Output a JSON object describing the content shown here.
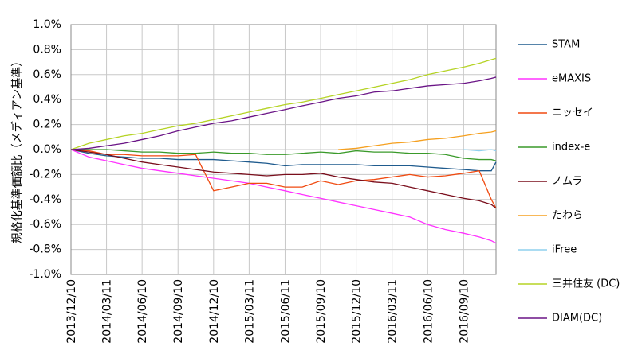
{
  "chart_data": {
    "type": "line",
    "y_label": "規格化基準価額比（メディアン基準）",
    "x": [
      "2013/12/10",
      "2014/01/25",
      "2014/03/11",
      "2014/04/25",
      "2014/06/10",
      "2014/07/25",
      "2014/09/10",
      "2014/10/25",
      "2014/12/10",
      "2015/01/25",
      "2015/03/11",
      "2015/04/25",
      "2015/06/11",
      "2015/07/25",
      "2015/09/10",
      "2015/10/25",
      "2015/12/10",
      "2016/01/25",
      "2016/03/11",
      "2016/04/25",
      "2016/06/10",
      "2016/07/25",
      "2016/09/10",
      "2016/10/20",
      "2016/11/20",
      "2016/12/02"
    ],
    "xlim": [
      "2013/12/10",
      "2016/12/02"
    ],
    "xticks": [
      "2013/12/10",
      "2014/03/11",
      "2014/06/10",
      "2014/09/10",
      "2014/12/10",
      "2015/03/11",
      "2015/06/11",
      "2015/09/10",
      "2015/12/10",
      "2016/03/11",
      "2016/06/10",
      "2016/09/10"
    ],
    "ylim": [
      -1.0,
      1.0
    ],
    "yticks": [
      {
        "value": -1.0,
        "label": "-1.0%"
      },
      {
        "value": -0.8,
        "label": "-0.8%"
      },
      {
        "value": -0.6,
        "label": "-0.6%"
      },
      {
        "value": -0.4,
        "label": "-0.4%"
      },
      {
        "value": -0.2,
        "label": "-0.2%"
      },
      {
        "value": 0.0,
        "label": "0.0%"
      },
      {
        "value": 0.2,
        "label": "0.2%"
      },
      {
        "value": 0.4,
        "label": "0.4%"
      },
      {
        "value": 0.6,
        "label": "0.6%"
      },
      {
        "value": 0.8,
        "label": "0.8%"
      },
      {
        "value": 1.0,
        "label": "1.0%"
      }
    ],
    "grid": true,
    "legend": "right",
    "series": [
      {
        "name": "STAM",
        "color": "#1f5b8e",
        "values": [
          0,
          -0.03,
          -0.05,
          -0.06,
          -0.07,
          -0.07,
          -0.08,
          -0.08,
          -0.08,
          -0.09,
          -0.1,
          -0.11,
          -0.13,
          -0.12,
          -0.12,
          -0.12,
          -0.12,
          -0.13,
          -0.13,
          -0.13,
          -0.14,
          -0.15,
          -0.16,
          -0.17,
          -0.17,
          -0.1
        ]
      },
      {
        "name": "eMAXIS",
        "color": "#ff33ff",
        "values": [
          0,
          -0.06,
          -0.09,
          -0.12,
          -0.15,
          -0.17,
          -0.19,
          -0.21,
          -0.23,
          -0.25,
          -0.27,
          -0.3,
          -0.33,
          -0.36,
          -0.39,
          -0.42,
          -0.45,
          -0.48,
          -0.51,
          -0.54,
          -0.6,
          -0.64,
          -0.67,
          -0.7,
          -0.73,
          -0.75
        ]
      },
      {
        "name": "ニッセイ",
        "color": "#f04a10",
        "values": [
          0,
          -0.01,
          -0.04,
          -0.04,
          -0.05,
          -0.05,
          -0.05,
          -0.04,
          -0.33,
          -0.3,
          -0.27,
          -0.27,
          -0.3,
          -0.3,
          -0.25,
          -0.28,
          -0.25,
          -0.24,
          -0.22,
          -0.2,
          -0.22,
          -0.21,
          -0.19,
          -0.17,
          -0.4,
          -0.47
        ]
      },
      {
        "name": "index-e",
        "color": "#3a9a2a",
        "values": [
          0,
          0,
          0,
          -0.01,
          -0.02,
          -0.02,
          -0.03,
          -0.03,
          -0.02,
          -0.03,
          -0.03,
          -0.04,
          -0.04,
          -0.03,
          -0.02,
          -0.03,
          -0.01,
          -0.02,
          -0.02,
          -0.03,
          -0.03,
          -0.04,
          -0.07,
          -0.08,
          -0.08,
          -0.09
        ]
      },
      {
        "name": "ノムラ",
        "color": "#7a0e1c",
        "values": [
          0,
          -0.02,
          -0.04,
          -0.07,
          -0.1,
          -0.12,
          -0.14,
          -0.16,
          -0.18,
          -0.19,
          -0.2,
          -0.21,
          -0.2,
          -0.2,
          -0.19,
          -0.22,
          -0.24,
          -0.26,
          -0.27,
          -0.3,
          -0.33,
          -0.36,
          -0.39,
          -0.41,
          -0.44,
          -0.47
        ]
      },
      {
        "name": "たわら",
        "color": "#f5a020",
        "values": [
          null,
          null,
          null,
          null,
          null,
          null,
          null,
          null,
          null,
          null,
          null,
          null,
          null,
          null,
          null,
          0.0,
          0.01,
          0.03,
          0.05,
          0.06,
          0.08,
          0.09,
          0.11,
          0.13,
          0.14,
          0.15
        ]
      },
      {
        "name": "iFree",
        "color": "#8fd0ee",
        "values": [
          null,
          null,
          null,
          null,
          null,
          null,
          null,
          null,
          null,
          null,
          null,
          null,
          null,
          null,
          null,
          null,
          null,
          null,
          null,
          null,
          null,
          null,
          0.0,
          -0.01,
          0.0,
          -0.01
        ]
      },
      {
        "name": "三井住友 (DC)",
        "color": "#b5d325",
        "values": [
          0,
          0.05,
          0.08,
          0.11,
          0.13,
          0.16,
          0.19,
          0.21,
          0.24,
          0.27,
          0.3,
          0.33,
          0.36,
          0.38,
          0.41,
          0.44,
          0.47,
          0.5,
          0.53,
          0.56,
          0.6,
          0.63,
          0.66,
          0.69,
          0.72,
          0.73
        ]
      },
      {
        "name": "DIAM(DC)",
        "color": "#6a1486",
        "values": [
          0,
          0.01,
          0.03,
          0.05,
          0.08,
          0.11,
          0.15,
          0.18,
          0.21,
          0.23,
          0.26,
          0.29,
          0.32,
          0.35,
          0.38,
          0.41,
          0.43,
          0.46,
          0.47,
          0.49,
          0.51,
          0.52,
          0.53,
          0.55,
          0.57,
          0.58
        ]
      }
    ]
  }
}
